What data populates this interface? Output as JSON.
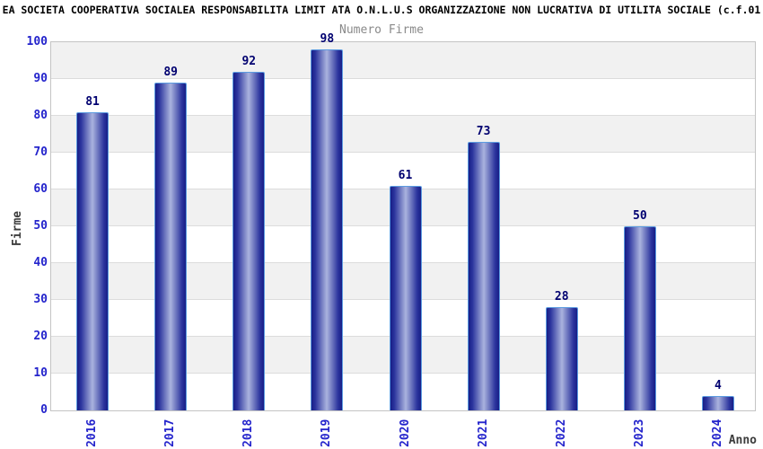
{
  "chart_data": {
    "type": "bar",
    "title": "EA SOCIETA COOPERATIVA SOCIALEA RESPONSABILITA LIMIT ATA O.N.L.U.S ORGANIZZAZIONE NON LUCRATIVA DI UTILITA SOCIALE (c.f.01",
    "subtitle": "Numero Firme",
    "xlabel": "Anno",
    "ylabel": "Firme",
    "categories": [
      "2016",
      "2017",
      "2018",
      "2019",
      "2020",
      "2021",
      "2022",
      "2023",
      "2024"
    ],
    "values": [
      81,
      89,
      92,
      98,
      61,
      73,
      28,
      50,
      4
    ],
    "ylim": [
      0,
      100
    ],
    "ytick_step": 10,
    "legend": "none",
    "grid": "horizontal alternating bands with gridlines every 10",
    "bar_value_labels": [
      "81",
      "89",
      "92",
      "98",
      "61",
      "73",
      "28",
      "50",
      "4"
    ],
    "colors": {
      "title": "#000000",
      "subtitle": "#8a8a8a",
      "axis_title": "#3c3c3c",
      "tick_label": "#2424cc",
      "value_label": "#000070",
      "bar_edge": "#171e86",
      "bar_shoulder": "#2c359e",
      "bar_center": "#aab3de",
      "bar_border": "#5b9be0",
      "band_gray": "#f1f1f1",
      "band_white": "#ffffff",
      "gridline": "#dcdcdc",
      "plot_border": "#c4c4c4",
      "background": "#ffffff"
    }
  }
}
